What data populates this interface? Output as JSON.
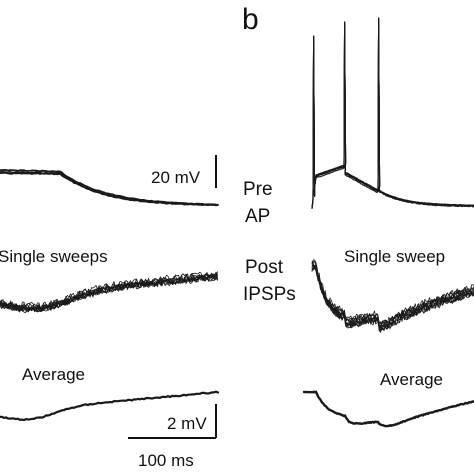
{
  "figure": {
    "panel_label": "b",
    "left_panel": {
      "scale_voltage_label": "20 mV",
      "single_label": "Single sweeps",
      "average_label": "Average",
      "scale_small_voltage_label": "2 mV",
      "scale_time_label": "100 ms"
    },
    "right_panel": {
      "pre_label_line1": "Pre",
      "pre_label_line2": "AP",
      "post_label_line1": "Post",
      "post_label_line2": "IPSPs",
      "single_label": "Single sweep",
      "average_label": "Average"
    }
  }
}
